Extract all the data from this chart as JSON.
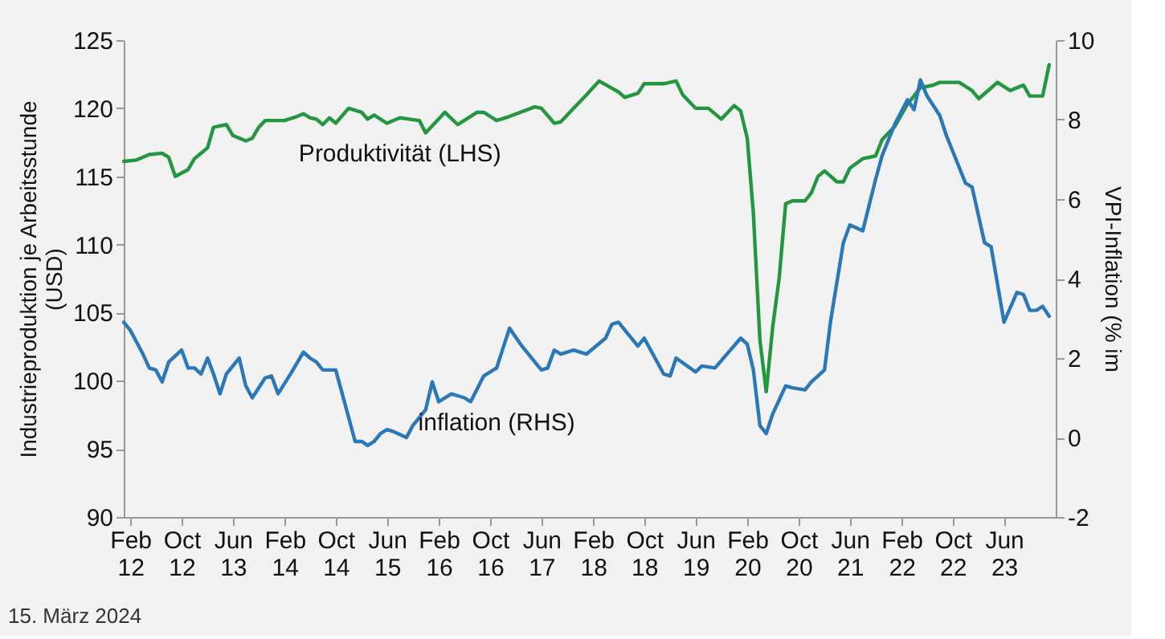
{
  "chart_data": {
    "type": "line",
    "ylabel": "Industrieproduktion je Arbeitsstunde (USD)",
    "y2label": "VPI-Inflation (% im",
    "annotations": [
      "15. März 2024"
    ],
    "xlim": [
      "2012-01",
      "2024-02"
    ],
    "xticks": [
      {
        "value": "2012-02",
        "label": "Feb 12"
      },
      {
        "value": "2012-10",
        "label": "Oct 12"
      },
      {
        "value": "2013-06",
        "label": "Jun 13"
      },
      {
        "value": "2014-02",
        "label": "Feb 14"
      },
      {
        "value": "2014-10",
        "label": "Oct 14"
      },
      {
        "value": "2015-06",
        "label": "Jun 15"
      },
      {
        "value": "2016-02",
        "label": "Feb 16"
      },
      {
        "value": "2016-10",
        "label": "Oct 16"
      },
      {
        "value": "2017-06",
        "label": "Jun 17"
      },
      {
        "value": "2018-02",
        "label": "Feb 18"
      },
      {
        "value": "2018-10",
        "label": "Oct 18"
      },
      {
        "value": "2019-06",
        "label": "Jun 19"
      },
      {
        "value": "2020-02",
        "label": "Feb 20"
      },
      {
        "value": "2020-10",
        "label": "Oct 20"
      },
      {
        "value": "2021-06",
        "label": "Jun 21"
      },
      {
        "value": "2022-02",
        "label": "Feb 22"
      },
      {
        "value": "2022-10",
        "label": "Oct 22"
      },
      {
        "value": "2023-06",
        "label": "Jun 23"
      }
    ],
    "ylim": [
      90,
      125
    ],
    "yticks": [
      90,
      95,
      100,
      105,
      110,
      115,
      120,
      125
    ],
    "y2lim": [
      -2,
      10
    ],
    "y2ticks": [
      -2,
      0,
      2,
      4,
      6,
      8,
      10
    ],
    "series": [
      {
        "name": "Produktivität (LHS)",
        "color": "#23963f",
        "x": [
          "2012-01",
          "2012-03",
          "2012-05",
          "2012-07",
          "2012-08",
          "2012-09",
          "2012-11",
          "2012-12",
          "2013-02",
          "2013-03",
          "2013-05",
          "2013-06",
          "2013-08",
          "2013-09",
          "2013-10",
          "2013-11",
          "2014-02",
          "2014-04",
          "2014-05",
          "2014-06",
          "2014-07",
          "2014-08",
          "2014-09",
          "2014-10",
          "2014-12",
          "2015-02",
          "2015-03",
          "2015-04",
          "2015-06",
          "2015-08",
          "2015-11",
          "2015-12",
          "2016-03",
          "2016-05",
          "2016-08",
          "2016-09",
          "2016-11",
          "2017-01",
          "2017-05",
          "2017-06",
          "2017-08",
          "2017-09",
          "2017-11",
          "2018-01",
          "2018-03",
          "2018-06",
          "2018-07",
          "2018-09",
          "2018-10",
          "2019-01",
          "2019-03",
          "2019-04",
          "2019-06",
          "2019-08",
          "2019-10",
          "2019-12",
          "2020-01",
          "2020-02",
          "2020-03",
          "2020-04",
          "2020-05",
          "2020-06",
          "2020-07",
          "2020-08",
          "2020-09",
          "2020-11",
          "2020-12",
          "2021-01",
          "2021-02",
          "2021-04",
          "2021-05",
          "2021-06",
          "2021-08",
          "2021-10",
          "2021-11",
          "2022-01",
          "2022-03",
          "2022-05",
          "2022-07",
          "2022-08",
          "2022-11",
          "2023-01",
          "2023-02",
          "2023-05",
          "2023-07",
          "2023-09",
          "2023-10",
          "2023-12",
          "2024-01"
        ],
        "values": [
          116.1,
          116.2,
          116.6,
          116.7,
          116.4,
          115.0,
          115.5,
          116.3,
          117.1,
          118.6,
          118.8,
          118.0,
          117.6,
          117.8,
          118.6,
          119.1,
          119.1,
          119.4,
          119.6,
          119.3,
          119.2,
          118.8,
          119.3,
          118.9,
          120.0,
          119.7,
          119.2,
          119.5,
          118.9,
          119.3,
          119.1,
          118.2,
          119.7,
          118.8,
          119.7,
          119.7,
          119.1,
          119.4,
          120.1,
          120.0,
          118.9,
          119.0,
          120.0,
          121.0,
          122.0,
          121.2,
          120.8,
          121.1,
          121.8,
          121.8,
          122.0,
          121.0,
          120.0,
          120.0,
          119.2,
          120.2,
          119.8,
          117.8,
          112.3,
          103.0,
          99.2,
          104.0,
          107.5,
          113.0,
          113.2,
          113.2,
          113.8,
          115.0,
          115.4,
          114.6,
          114.6,
          115.6,
          116.3,
          116.5,
          117.7,
          118.7,
          120.3,
          121.5,
          121.7,
          121.9,
          121.9,
          121.3,
          120.7,
          121.9,
          121.3,
          121.7,
          120.9,
          120.9,
          123.2
        ]
      },
      {
        "name": "inflation (RHS)",
        "color": "#2a78b8",
        "axis": "y2",
        "x": [
          "2012-01",
          "2012-02",
          "2012-04",
          "2012-05",
          "2012-06",
          "2012-07",
          "2012-08",
          "2012-10",
          "2012-11",
          "2012-12",
          "2013-01",
          "2013-02",
          "2013-03",
          "2013-04",
          "2013-05",
          "2013-07",
          "2013-08",
          "2013-09",
          "2013-11",
          "2013-12",
          "2014-01",
          "2014-03",
          "2014-05",
          "2014-06",
          "2014-07",
          "2014-08",
          "2014-10",
          "2014-11",
          "2015-01",
          "2015-02",
          "2015-03",
          "2015-04",
          "2015-05",
          "2015-06",
          "2015-07",
          "2015-09",
          "2015-10",
          "2015-12",
          "2016-01",
          "2016-02",
          "2016-04",
          "2016-06",
          "2016-07",
          "2016-09",
          "2016-11",
          "2017-01",
          "2017-03",
          "2017-06",
          "2017-07",
          "2017-08",
          "2017-09",
          "2017-11",
          "2018-01",
          "2018-04",
          "2018-05",
          "2018-06",
          "2018-09",
          "2018-10",
          "2019-01",
          "2019-02",
          "2019-03",
          "2019-06",
          "2019-07",
          "2019-09",
          "2020-01",
          "2020-02",
          "2020-03",
          "2020-04",
          "2020-05",
          "2020-06",
          "2020-08",
          "2020-09",
          "2020-11",
          "2020-12",
          "2021-02",
          "2021-03",
          "2021-05",
          "2021-06",
          "2021-08",
          "2021-10",
          "2021-11",
          "2022-01",
          "2022-03",
          "2022-04",
          "2022-05",
          "2022-06",
          "2022-08",
          "2022-09",
          "2022-12",
          "2023-01",
          "2023-03",
          "2023-04",
          "2023-06",
          "2023-08",
          "2023-09",
          "2023-10",
          "2023-11",
          "2023-12",
          "2024-01"
        ],
        "values": [
          2.9,
          2.7,
          2.1,
          1.75,
          1.7,
          1.4,
          1.9,
          2.2,
          1.75,
          1.75,
          1.6,
          2.0,
          1.6,
          1.1,
          1.6,
          2.0,
          1.3,
          1.0,
          1.5,
          1.55,
          1.1,
          1.6,
          2.15,
          2.0,
          1.9,
          1.7,
          1.7,
          1.1,
          -0.1,
          -0.1,
          -0.2,
          -0.1,
          0.1,
          0.2,
          0.15,
          0.0,
          0.3,
          0.7,
          1.4,
          0.9,
          1.1,
          1.0,
          0.9,
          1.55,
          1.75,
          2.75,
          2.3,
          1.7,
          1.75,
          2.2,
          2.1,
          2.2,
          2.1,
          2.5,
          2.85,
          2.9,
          2.3,
          2.5,
          1.6,
          1.55,
          2.0,
          1.65,
          1.8,
          1.75,
          2.5,
          2.35,
          1.7,
          0.3,
          0.1,
          0.6,
          1.3,
          1.25,
          1.2,
          1.4,
          1.7,
          2.9,
          4.9,
          5.35,
          5.2,
          6.5,
          7.1,
          7.9,
          8.5,
          8.25,
          9.0,
          8.6,
          8.1,
          7.6,
          6.4,
          6.3,
          4.9,
          4.8,
          2.9,
          3.65,
          3.6,
          3.2,
          3.2,
          3.3,
          3.05
        ]
      }
    ]
  }
}
